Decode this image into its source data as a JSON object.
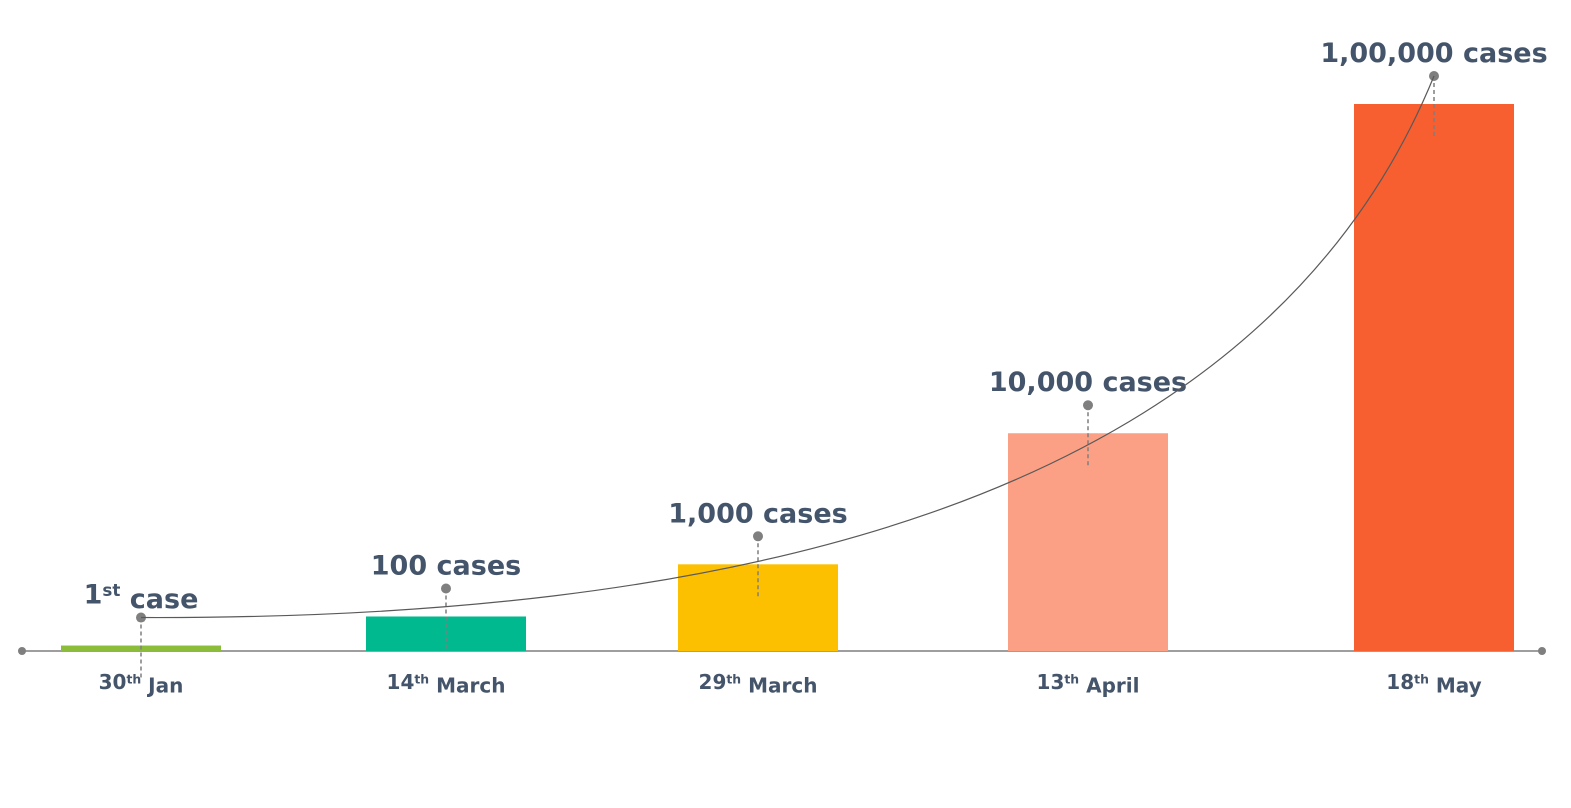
{
  "chart_data": {
    "type": "bar",
    "categories": [
      "30th Jan",
      "14th March",
      "29th March",
      "13th April",
      "18th May"
    ],
    "values": [
      1,
      100,
      1000,
      10000,
      100000
    ],
    "value_labels": [
      "1st case",
      "100 cases",
      "1,000 cases",
      "10,000 cases",
      "1,00,000 cases"
    ],
    "colors": [
      "#8bbd3a",
      "#00b98e",
      "#fdc000",
      "#fba084",
      "#f75f31"
    ]
  }
}
